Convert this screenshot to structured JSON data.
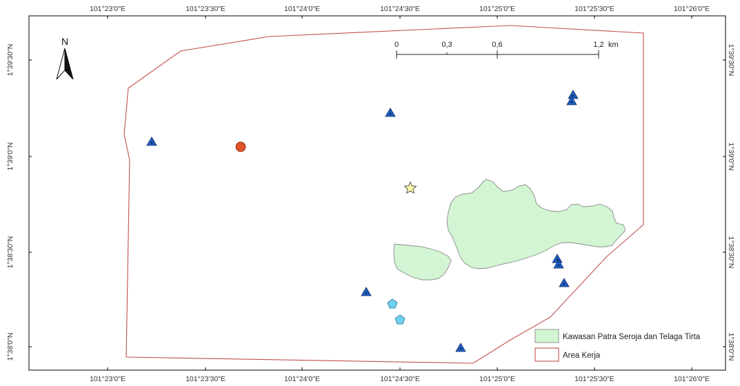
{
  "axes": {
    "top_labels": [
      "101°23'0\"E",
      "101°23'30\"E",
      "101°24'0\"E",
      "101°24'30\"E",
      "101°25'0\"E",
      "101°25'30\"E",
      "101°26'0\"E"
    ],
    "bottom_labels": [
      "101°23'0\"E",
      "101°23'30\"E",
      "101°24'0\"E",
      "101°24'30\"E",
      "101°25'0\"E",
      "101°25'30\"E",
      "101°26'0\"E"
    ],
    "left_labels": [
      "1°39'30\"N",
      "1°39'0\"N",
      "1°38'30\"N",
      "1°38'0\"N"
    ],
    "right_labels": [
      "1°39'30\"N",
      "1°39'0\"N",
      "1°38'30\"N",
      "1°38'0\"N"
    ]
  },
  "north_arrow": {
    "label": "N"
  },
  "scale_bar": {
    "labels": [
      "0",
      "0,3",
      "0,6",
      "1,2"
    ],
    "unit": "km"
  },
  "legend": {
    "items": [
      {
        "label": "Kawasan Patra Seroja dan Telaga Tirta",
        "symbol": "polygon",
        "fill": "#d3f5d3",
        "stroke": "#8a8a8a"
      },
      {
        "label": "Area Kerja",
        "symbol": "polygon",
        "fill": "#ffffff",
        "stroke": "#c0504d"
      }
    ]
  },
  "colors": {
    "frame": "#000000",
    "area_kerja": "#c0504d",
    "kawasan_fill": "#d3f5d3",
    "triangle": "#1f5fbf",
    "circle": "#e0522a",
    "star": "#fff9a8",
    "pentagon": "#6fcfef"
  },
  "point_symbols": {
    "triangles": 10,
    "circles": 1,
    "stars": 1,
    "pentagons": 2
  }
}
